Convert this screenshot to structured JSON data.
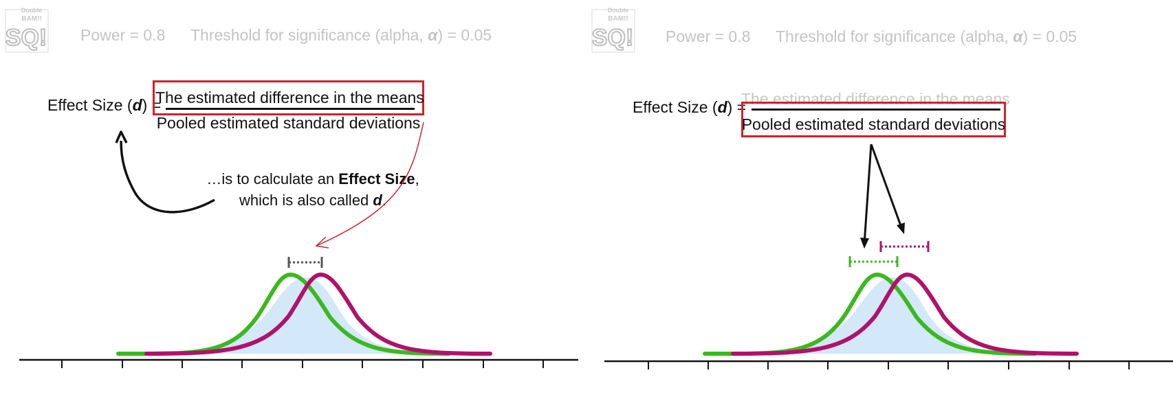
{
  "logo": {
    "line1": "Double",
    "line2": "BAM!!",
    "mark": "SQ!"
  },
  "header": {
    "power": "Power = 0.8",
    "alpha_prefix": "Threshold for significance (alpha, ",
    "alpha_symbol": "α",
    "alpha_suffix": ") = 0.05"
  },
  "formula": {
    "label_prefix": "Effect Size (",
    "label_symbol": "d",
    "label_suffix": ") =",
    "numerator": "The estimated difference in the means",
    "denominator": "Pooled estimated standard deviations"
  },
  "explanation": {
    "line1_prefix": "…is to calculate an ",
    "line1_bold": "Effect Size",
    "line1_suffix": ",",
    "line2_prefix": "which is also called ",
    "line2_symbol": "d",
    "line2_suffix": "."
  },
  "colors": {
    "green": "#3cb81f",
    "magenta": "#b0126a",
    "overlap_fill": "#d3e8f8",
    "highlight": "#d3202a",
    "gray_bracket": "#555555",
    "header_text": "#c4c4c4"
  },
  "icons": [
    "logo-badge",
    "curved-arrow-icon",
    "annotation-arrow-icon",
    "pointer-arrow-icon"
  ]
}
